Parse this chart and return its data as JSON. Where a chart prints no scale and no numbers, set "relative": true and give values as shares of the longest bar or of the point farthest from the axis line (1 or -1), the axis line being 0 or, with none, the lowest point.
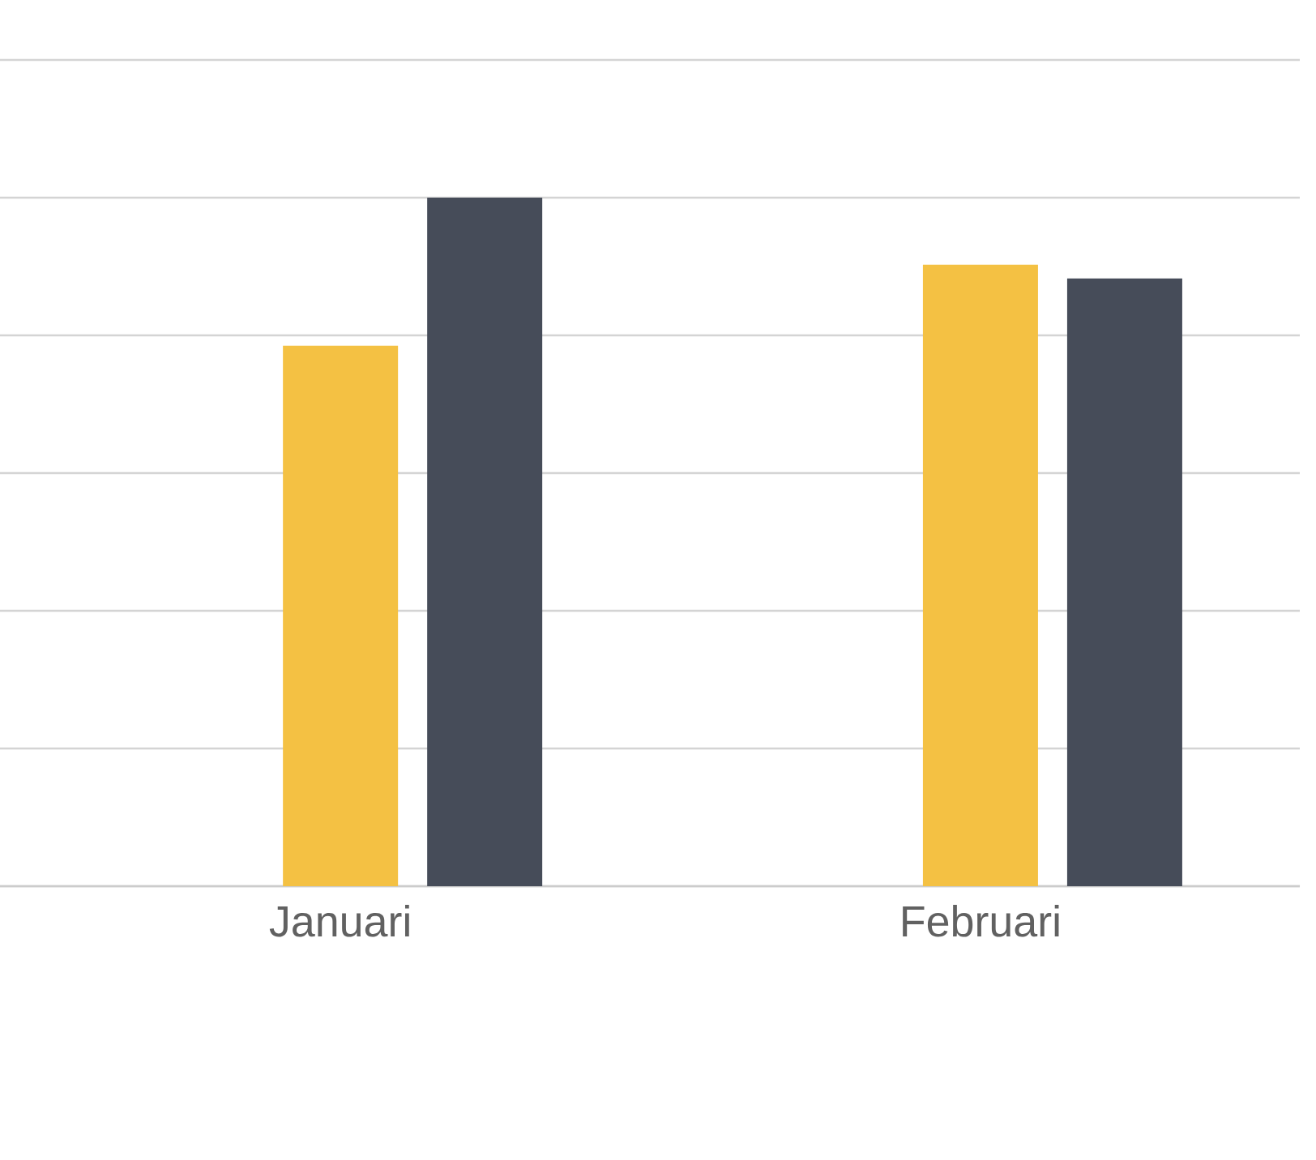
{
  "chart_data": {
    "type": "bar",
    "relative": true,
    "categories": [
      "Januari",
      "Februari"
    ],
    "grid": "y",
    "series": [
      {
        "color": "#f4c143",
        "values": [
          0.785,
          0.9025
        ]
      },
      {
        "color": "#464c59",
        "values": [
          1,
          0.8825
        ]
      }
    ]
  }
}
